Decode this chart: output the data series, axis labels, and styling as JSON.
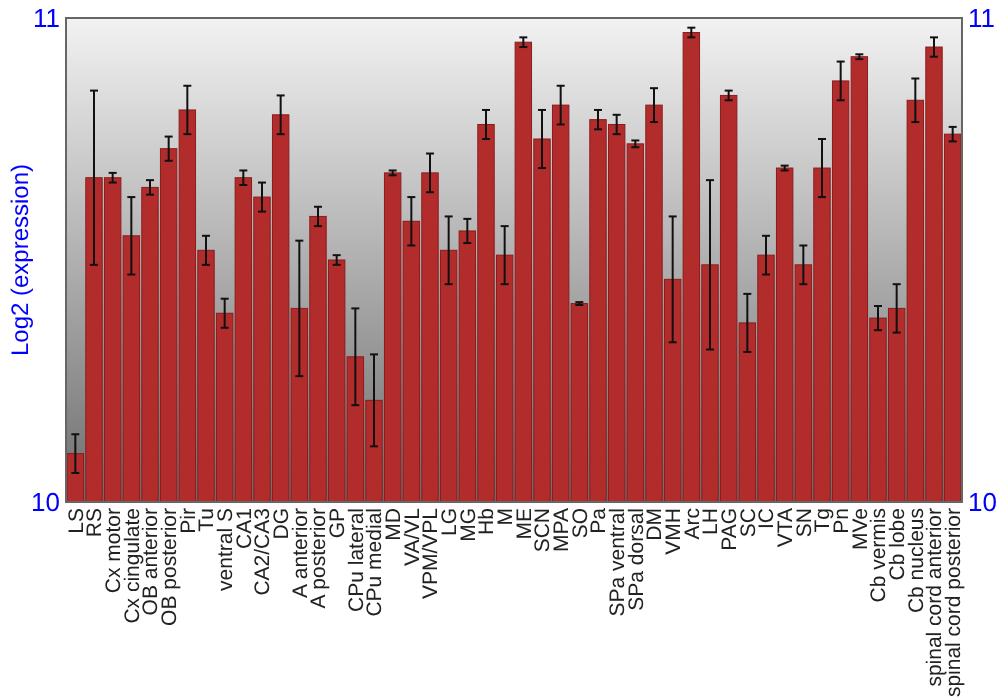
{
  "chart_data": {
    "type": "bar",
    "ylabel": "Log2 (expression)",
    "categories": [
      "LS",
      "RS",
      "Cx motor",
      "Cx cingulate",
      "OB anterior",
      "OB posterior",
      "Pir",
      "Tu",
      "ventral S",
      "CA1",
      "CA2/CA3",
      "DG",
      "A anterior",
      "A posterior",
      "GP",
      "CPu lateral",
      "CPu medial",
      "MD",
      "VA/VL",
      "VPM/VPL",
      "LG",
      "MG",
      "Hb",
      "M",
      "ME",
      "SCN",
      "MPA",
      "SO",
      "Pa",
      "SPa ventral",
      "SPa dorsal",
      "DM",
      "VMH",
      "Arc",
      "LH",
      "PAG",
      "SC",
      "IC",
      "VTA",
      "SN",
      "Tg",
      "Pn",
      "MVe",
      "Cb vermis",
      "Cb lobe",
      "Cb nucleus",
      "spinal cord anterior",
      "spinal cord posterior"
    ],
    "values": [
      10.1,
      10.67,
      10.67,
      10.55,
      10.65,
      10.73,
      10.81,
      10.52,
      10.39,
      10.67,
      10.63,
      10.8,
      10.4,
      10.59,
      10.5,
      10.3,
      10.21,
      10.68,
      10.58,
      10.68,
      10.52,
      10.56,
      10.78,
      10.51,
      10.95,
      10.75,
      10.82,
      10.41,
      10.79,
      10.78,
      10.74,
      10.82,
      10.46,
      10.97,
      10.49,
      10.84,
      10.37,
      10.51,
      10.69,
      10.49,
      10.69,
      10.87,
      10.92,
      10.38,
      10.4,
      10.83,
      10.94,
      10.76
    ],
    "errors": [
      0.04,
      0.18,
      0.01,
      0.08,
      0.015,
      0.025,
      0.05,
      0.03,
      0.03,
      0.015,
      0.03,
      0.04,
      0.14,
      0.02,
      0.01,
      0.1,
      0.095,
      0.005,
      0.05,
      0.04,
      0.07,
      0.025,
      0.03,
      0.06,
      0.01,
      0.06,
      0.04,
      0.003,
      0.02,
      0.02,
      0.007,
      0.035,
      0.13,
      0.01,
      0.175,
      0.01,
      0.06,
      0.04,
      0.005,
      0.04,
      0.06,
      0.04,
      0.005,
      0.025,
      0.05,
      0.045,
      0.02,
      0.015
    ],
    "color": "#b22c2c",
    "ylim": [
      10,
      11
    ],
    "yticks": [
      10,
      11
    ],
    "y2lim": [
      10,
      11
    ],
    "y2ticks": [
      10,
      11
    ]
  }
}
